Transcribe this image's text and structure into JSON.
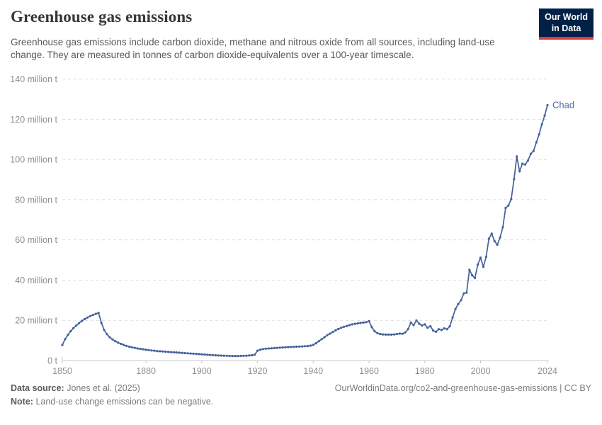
{
  "header": {
    "title": "Greenhouse gas emissions",
    "subtitle": "Greenhouse gas emissions include carbon dioxide, methane and nitrous oxide from all sources, including land-use change. They are measured in tonnes of carbon dioxide-equivalents over a 100-year timescale.",
    "logo_line1": "Our World",
    "logo_line2": "in Data",
    "logo_bg": "#002147",
    "logo_accent": "#dc3b41"
  },
  "chart_data": {
    "type": "line",
    "title": "Greenhouse gas emissions",
    "ylabel": "",
    "xlabel": "",
    "unit": "tonnes of CO2-equivalents",
    "xlim": [
      1850,
      2024
    ],
    "ylim": [
      0,
      140000000
    ],
    "grid": "horizontal-dashed",
    "legend_position": "end-of-line-label",
    "yticks": [
      {
        "v": 0,
        "label": "0 t"
      },
      {
        "v": 20,
        "label": "20 million t"
      },
      {
        "v": 40,
        "label": "40 million t"
      },
      {
        "v": 60,
        "label": "60 million t"
      },
      {
        "v": 80,
        "label": "80 million t"
      },
      {
        "v": 100,
        "label": "100 million t"
      },
      {
        "v": 120,
        "label": "120 million t"
      },
      {
        "v": 140,
        "label": "140 million t"
      }
    ],
    "xticks": [
      {
        "v": 1850,
        "label": "1850"
      },
      {
        "v": 1880,
        "label": "1880"
      },
      {
        "v": 1900,
        "label": "1900"
      },
      {
        "v": 1920,
        "label": "1920"
      },
      {
        "v": 1940,
        "label": "1940"
      },
      {
        "v": 1960,
        "label": "1960"
      },
      {
        "v": 1980,
        "label": "1980"
      },
      {
        "v": 2000,
        "label": "2000"
      },
      {
        "v": 2024,
        "label": "2024"
      }
    ],
    "series": [
      {
        "name": "Chad",
        "color": "#44619c",
        "label_color": "#4a6ba3",
        "units_millions_t": true,
        "year_start": 1850,
        "values": [
          7.7,
          10.6,
          12.8,
          14.6,
          16.1,
          17.4,
          18.6,
          19.7,
          20.6,
          21.4,
          22.1,
          22.7,
          23.2,
          23.7,
          18.8,
          15.2,
          13.1,
          11.6,
          10.5,
          9.6,
          8.9,
          8.3,
          7.8,
          7.3,
          6.9,
          6.6,
          6.3,
          6.0,
          5.8,
          5.6,
          5.4,
          5.2,
          5.0,
          4.9,
          4.7,
          4.6,
          4.5,
          4.4,
          4.3,
          4.2,
          4.1,
          4.0,
          3.9,
          3.8,
          3.7,
          3.6,
          3.5,
          3.4,
          3.3,
          3.2,
          3.1,
          3.0,
          2.9,
          2.8,
          2.7,
          2.6,
          2.5,
          2.45,
          2.4,
          2.35,
          2.3,
          2.25,
          2.25,
          2.25,
          2.3,
          2.35,
          2.4,
          2.5,
          2.65,
          2.9,
          4.9,
          5.4,
          5.7,
          5.9,
          6.0,
          6.1,
          6.2,
          6.3,
          6.4,
          6.5,
          6.6,
          6.7,
          6.75,
          6.8,
          6.9,
          6.95,
          7.0,
          7.1,
          7.2,
          7.4,
          7.8,
          8.6,
          9.6,
          10.6,
          11.6,
          12.6,
          13.4,
          14.2,
          15.0,
          15.7,
          16.3,
          16.8,
          17.2,
          17.6,
          18.0,
          18.3,
          18.5,
          18.7,
          18.9,
          19.1,
          19.6,
          16.6,
          14.6,
          13.6,
          13.2,
          13.0,
          12.9,
          12.9,
          12.9,
          13.0,
          13.2,
          13.4,
          13.3,
          14.0,
          15.6,
          18.9,
          17.6,
          19.9,
          18.3,
          17.4,
          18.0,
          16.3,
          17.1,
          14.9,
          14.3,
          15.6,
          15.2,
          16.0,
          15.6,
          17.1,
          21.5,
          25.6,
          28.1,
          30.0,
          33.4,
          33.8,
          45.1,
          42.4,
          41.0,
          47.7,
          51.2,
          46.6,
          51.6,
          60.6,
          63.1,
          59.4,
          57.6,
          61.2,
          66.3,
          75.9,
          77.1,
          80.3,
          90.2,
          101.5,
          94.1,
          97.9,
          97.5,
          99.4,
          102.8,
          104.2,
          108.5,
          112.5,
          117.5,
          121.9,
          127.0
        ]
      }
    ],
    "colors": {
      "grid": "#dcdcdc",
      "axis": "#c8c8c8",
      "tick_text": "#8f8f8f"
    }
  },
  "footer": {
    "source_label": "Data source:",
    "source_value": "Jones et al. (2025)",
    "note_label": "Note:",
    "note_value": "Land-use change emissions can be negative.",
    "citation": "OurWorldinData.org/co2-and-greenhouse-gas-emissions | CC BY"
  }
}
